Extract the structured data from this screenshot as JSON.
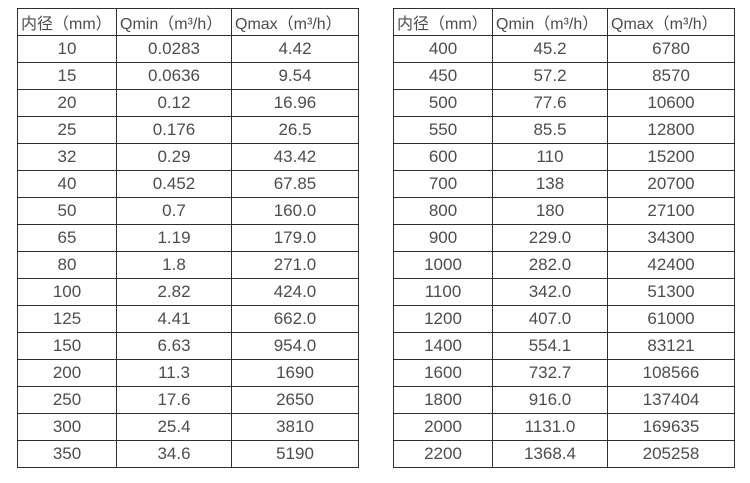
{
  "colors": {
    "background": "#ffffff",
    "border": "#2f2f2f",
    "text": "#4d4d4d"
  },
  "tables": [
    {
      "name": "flow-table-small-diameters",
      "headers": [
        "内径（mm）",
        "Qmin（m³/h）",
        "Qmax（m³/h）"
      ],
      "rows": [
        [
          "10",
          "0.0283",
          "4.42"
        ],
        [
          "15",
          "0.0636",
          "9.54"
        ],
        [
          "20",
          "0.12",
          "16.96"
        ],
        [
          "25",
          "0.176",
          "26.5"
        ],
        [
          "32",
          "0.29",
          "43.42"
        ],
        [
          "40",
          "0.452",
          "67.85"
        ],
        [
          "50",
          "0.7",
          "160.0"
        ],
        [
          "65",
          "1.19",
          "179.0"
        ],
        [
          "80",
          "1.8",
          "271.0"
        ],
        [
          "100",
          "2.82",
          "424.0"
        ],
        [
          "125",
          "4.41",
          "662.0"
        ],
        [
          "150",
          "6.63",
          "954.0"
        ],
        [
          "200",
          "11.3",
          "1690"
        ],
        [
          "250",
          "17.6",
          "2650"
        ],
        [
          "300",
          "25.4",
          "3810"
        ],
        [
          "350",
          "34.6",
          "5190"
        ]
      ]
    },
    {
      "name": "flow-table-large-diameters",
      "headers": [
        "内径（mm）",
        "Qmin（m³/h）",
        "Qmax（m³/h）"
      ],
      "rows": [
        [
          "400",
          "45.2",
          "6780"
        ],
        [
          "450",
          "57.2",
          "8570"
        ],
        [
          "500",
          "77.6",
          "10600"
        ],
        [
          "550",
          "85.5",
          "12800"
        ],
        [
          "600",
          "110",
          "15200"
        ],
        [
          "700",
          "138",
          "20700"
        ],
        [
          "800",
          "180",
          "27100"
        ],
        [
          "900",
          "229.0",
          "34300"
        ],
        [
          "1000",
          "282.0",
          "42400"
        ],
        [
          "1100",
          "342.0",
          "51300"
        ],
        [
          "1200",
          "407.0",
          "61000"
        ],
        [
          "1400",
          "554.1",
          "83121"
        ],
        [
          "1600",
          "732.7",
          "108566"
        ],
        [
          "1800",
          "916.0",
          "137404"
        ],
        [
          "2000",
          "1131.0",
          "169635"
        ],
        [
          "2200",
          "1368.4",
          "205258"
        ]
      ]
    }
  ]
}
